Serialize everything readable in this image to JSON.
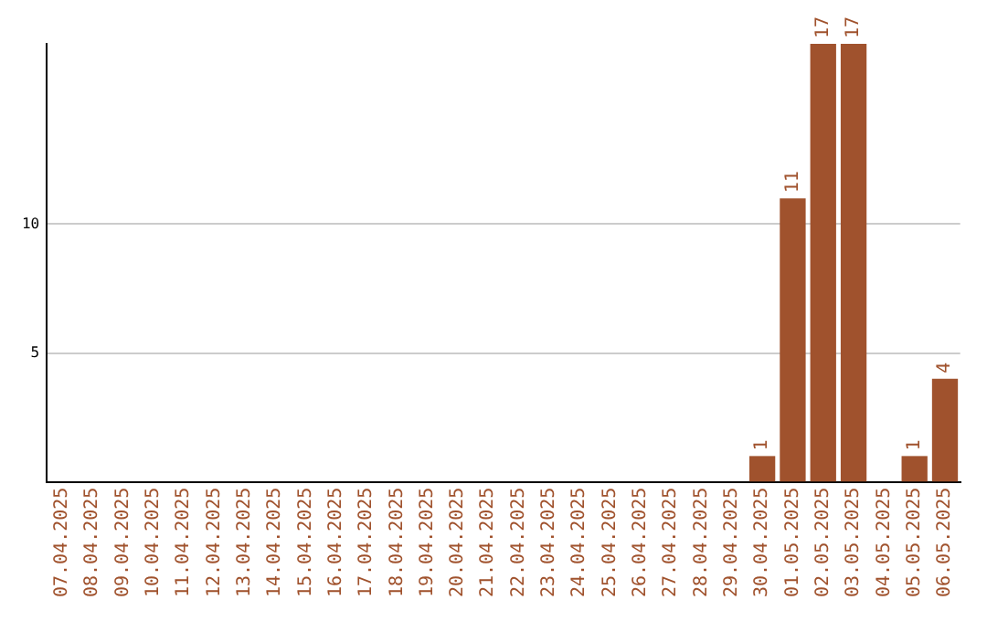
{
  "chart_data": {
    "type": "bar",
    "categories": [
      "07.04.2025",
      "08.04.2025",
      "09.04.2025",
      "10.04.2025",
      "11.04.2025",
      "12.04.2025",
      "13.04.2025",
      "14.04.2025",
      "15.04.2025",
      "16.04.2025",
      "17.04.2025",
      "18.04.2025",
      "19.04.2025",
      "20.04.2025",
      "21.04.2025",
      "22.04.2025",
      "23.04.2025",
      "24.04.2025",
      "25.04.2025",
      "26.04.2025",
      "27.04.2025",
      "28.04.2025",
      "29.04.2025",
      "30.04.2025",
      "01.05.2025",
      "02.05.2025",
      "03.05.2025",
      "04.05.2025",
      "05.05.2025",
      "06.05.2025"
    ],
    "values": [
      0,
      0,
      0,
      0,
      0,
      0,
      0,
      0,
      0,
      0,
      0,
      0,
      0,
      0,
      0,
      0,
      0,
      0,
      0,
      0,
      0,
      0,
      0,
      1,
      11,
      17,
      17,
      0,
      1,
      4
    ],
    "value_labels": [
      null,
      null,
      null,
      null,
      null,
      null,
      null,
      null,
      null,
      null,
      null,
      null,
      null,
      null,
      null,
      null,
      null,
      null,
      null,
      null,
      null,
      null,
      null,
      "1",
      "11",
      "17",
      "17",
      null,
      "1",
      "4"
    ],
    "color": "#a0522d",
    "ylim": [
      0,
      17
    ],
    "yticks": [
      5,
      10
    ],
    "grid": "y",
    "legend": false
  }
}
